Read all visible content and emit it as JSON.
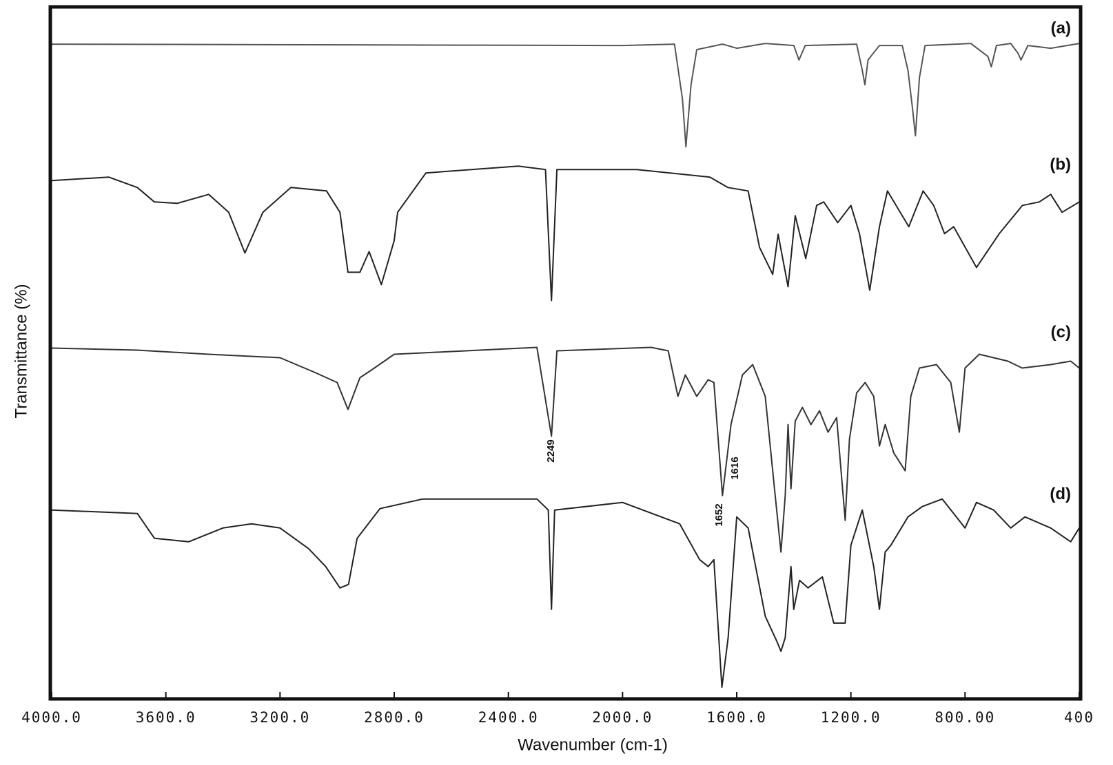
{
  "chart_data": {
    "type": "line",
    "xlabel": "Wavenumber (cm-1)",
    "ylabel": "Transmittance (%)",
    "xlim": [
      4000,
      400
    ],
    "ylim": [
      0,
      100
    ],
    "xticks": [
      {
        "value": 4000,
        "label": "4000.0"
      },
      {
        "value": 3600,
        "label": "3600.0"
      },
      {
        "value": 3200,
        "label": "3200.0"
      },
      {
        "value": 2800,
        "label": "2800.0"
      },
      {
        "value": 2400,
        "label": "2400.0"
      },
      {
        "value": 2000,
        "label": "2000.0"
      },
      {
        "value": 1600,
        "label": "1600.0"
      },
      {
        "value": 1200,
        "label": "1200.0"
      },
      {
        "value": 800,
        "label": "800.00"
      },
      400
    ],
    "annotations": [
      "2249",
      "1652",
      "1616"
    ],
    "series": [
      {
        "name": "(a)",
        "color": "#555555",
        "x": [
          4000,
          2000,
          1818,
          1790,
          1778,
          1760,
          1740,
          1650,
          1600,
          1500,
          1400,
          1382,
          1360,
          1180,
          1160,
          1151,
          1140,
          1100,
          1020,
          1000,
          985,
          974,
          960,
          940,
          780,
          720,
          708,
          690,
          640,
          615,
          604,
          580,
          500,
          400
        ],
        "values": [
          94.8,
          94.6,
          94.8,
          86.8,
          79.9,
          88.9,
          94.0,
          94.8,
          94.2,
          94.9,
          94.6,
          92.5,
          94.6,
          94.8,
          91.0,
          88.9,
          92.5,
          94.6,
          94.6,
          91.0,
          85.8,
          81.5,
          89.9,
          94.6,
          94.9,
          93.0,
          91.5,
          94.6,
          94.9,
          93.5,
          92.5,
          94.6,
          94.2,
          94.9
        ]
      },
      {
        "name": "(b)",
        "color": "#222222",
        "x": [
          4000,
          3800,
          3700,
          3640,
          3560,
          3450,
          3380,
          3323,
          3260,
          3162,
          3037,
          2990,
          2962,
          2920,
          2888,
          2845,
          2800,
          2788,
          2689,
          2365,
          2270,
          2249,
          2230,
          1950,
          1694,
          1631,
          1560,
          1520,
          1474,
          1455,
          1420,
          1395,
          1358,
          1320,
          1295,
          1246,
          1200,
          1170,
          1134,
          1100,
          1072,
          997,
          947,
          910,
          872,
          840,
          760,
          680,
          599,
          540,
          500,
          460,
          400
        ],
        "values": [
          75.0,
          75.5,
          74.0,
          71.9,
          71.7,
          73.0,
          70.4,
          64.5,
          70.4,
          74.0,
          73.5,
          70.4,
          61.7,
          61.7,
          64.7,
          59.9,
          66.3,
          70.4,
          76.1,
          77.1,
          76.6,
          57.6,
          76.6,
          76.6,
          75.5,
          74.0,
          73.5,
          65.3,
          61.4,
          67.2,
          59.6,
          69.9,
          63.7,
          71.4,
          71.9,
          68.9,
          71.4,
          67.3,
          59.1,
          68.3,
          73.5,
          68.3,
          73.5,
          71.4,
          67.3,
          68.3,
          62.4,
          67.3,
          71.4,
          71.9,
          73.0,
          70.4,
          71.9
        ]
      },
      {
        "name": "(c)",
        "color": "#333333",
        "x": [
          4000,
          3700,
          3450,
          3200,
          3080,
          3000,
          2962,
          2920,
          2880,
          2800,
          2300,
          2249,
          2230,
          1900,
          1840,
          1806,
          1780,
          1740,
          1700,
          1680,
          1650,
          1620,
          1580,
          1544,
          1500,
          1470,
          1445,
          1430,
          1420,
          1410,
          1395,
          1370,
          1340,
          1310,
          1280,
          1250,
          1220,
          1205,
          1180,
          1150,
          1120,
          1100,
          1080,
          1050,
          1010,
          990,
          960,
          900,
          850,
          820,
          800,
          750,
          650,
          600,
          500,
          430,
          400
        ],
        "values": [
          50.7,
          50.4,
          49.8,
          49.3,
          47.2,
          45.7,
          41.8,
          46.4,
          47.5,
          49.8,
          50.8,
          37.9,
          50.3,
          50.8,
          50.3,
          43.7,
          46.8,
          43.7,
          46.1,
          45.7,
          29.3,
          39.6,
          46.8,
          48.3,
          43.7,
          31.3,
          21.1,
          29.3,
          39.6,
          30.3,
          40.1,
          42.1,
          39.6,
          41.6,
          38.5,
          40.6,
          25.7,
          37.5,
          44.2,
          45.7,
          43.7,
          36.5,
          39.6,
          35.5,
          32.9,
          43.7,
          47.8,
          48.3,
          45.7,
          38.5,
          47.8,
          49.8,
          48.8,
          47.8,
          48.3,
          48.8,
          47.8
        ]
      },
      {
        "name": "(d)",
        "color": "#222222",
        "x": [
          4000,
          3700,
          3640,
          3520,
          3400,
          3300,
          3200,
          3100,
          3040,
          2990,
          2960,
          2930,
          2850,
          2700,
          2300,
          2260,
          2249,
          2238,
          2000,
          1800,
          1730,
          1700,
          1680,
          1652,
          1630,
          1600,
          1560,
          1500,
          1460,
          1445,
          1430,
          1410,
          1400,
          1380,
          1350,
          1300,
          1260,
          1220,
          1200,
          1160,
          1120,
          1100,
          1080,
          1060,
          1000,
          950,
          880,
          840,
          800,
          760,
          700,
          640,
          590,
          500,
          430,
          400
        ],
        "values": [
          27.2,
          26.7,
          23.1,
          22.6,
          24.6,
          25.2,
          24.6,
          21.6,
          19.0,
          15.9,
          16.4,
          23.1,
          27.4,
          28.8,
          28.8,
          27.2,
          12.8,
          27.2,
          28.3,
          25.2,
          20.0,
          19.0,
          20.0,
          1.5,
          8.7,
          26.2,
          24.6,
          11.8,
          8.2,
          6.7,
          8.7,
          19.0,
          12.8,
          17.0,
          15.9,
          17.5,
          10.8,
          10.8,
          22.1,
          27.2,
          19.0,
          12.8,
          21.1,
          22.1,
          26.2,
          27.7,
          28.8,
          26.7,
          24.6,
          28.3,
          27.2,
          24.6,
          26.2,
          24.6,
          22.6,
          24.6
        ]
      }
    ]
  }
}
